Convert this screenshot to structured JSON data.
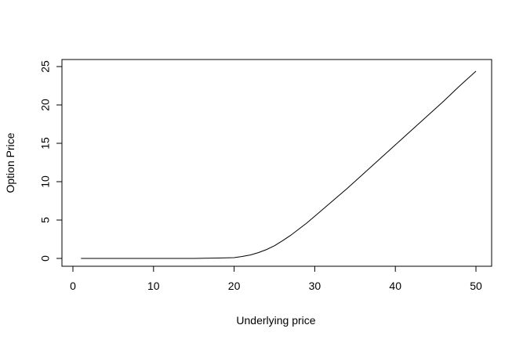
{
  "chart_data": {
    "type": "line",
    "title": "",
    "xlabel": "Underlying price",
    "ylabel": "Option Price",
    "xlim": [
      0,
      50
    ],
    "ylim": [
      0,
      25
    ],
    "xticks": [
      0,
      10,
      20,
      30,
      40,
      50
    ],
    "yticks": [
      0,
      5,
      10,
      15,
      20,
      25
    ],
    "grid": false,
    "series": [
      {
        "x": [
          1,
          5,
          10,
          15,
          18,
          20,
          21,
          22,
          23,
          24,
          25,
          26,
          27,
          28,
          29,
          30,
          32,
          34,
          36,
          38,
          40,
          42,
          44,
          46,
          48,
          50
        ],
        "y": [
          0,
          0,
          0,
          0,
          0.05,
          0.1,
          0.25,
          0.45,
          0.75,
          1.15,
          1.65,
          2.3,
          3.0,
          3.8,
          4.6,
          5.5,
          7.3,
          9.1,
          11.0,
          12.9,
          14.8,
          16.7,
          18.6,
          20.5,
          22.5,
          24.4
        ],
        "color": "#000000"
      }
    ]
  }
}
